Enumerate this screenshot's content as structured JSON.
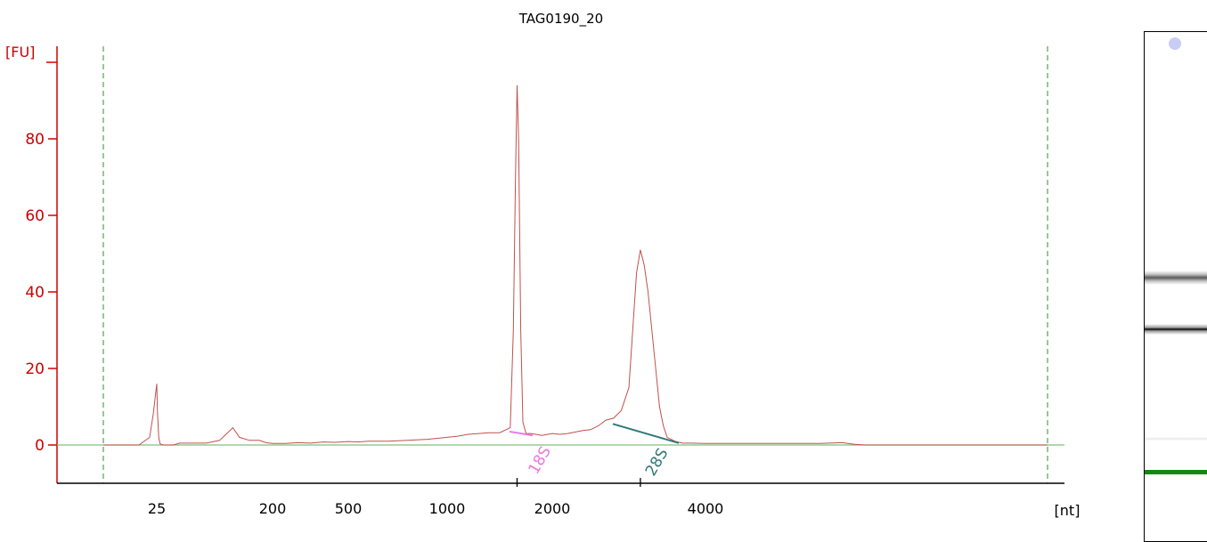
{
  "colors": {
    "trace": "#c0504d",
    "axis": "#d40000",
    "baseline": "#7fbf7f",
    "marker_18s": "#ee77dd",
    "marker_28s": "#307878",
    "gel_marker": "#118811"
  },
  "chart_data": {
    "type": "line",
    "title": "TAG0190_20",
    "ylabel": "[FU]",
    "xlabel": "[nt]",
    "ylim": [
      -10,
      105
    ],
    "yticks": [
      0,
      20,
      40,
      60,
      80
    ],
    "xticks": [
      "25",
      "200",
      "500",
      "1000",
      "2000",
      "4000"
    ],
    "x_scale": "nonlinear (size ladder)",
    "grid": false,
    "series": [
      {
        "points": [
          [
            10,
            0
          ],
          [
            20,
            0
          ],
          [
            23,
            2
          ],
          [
            24,
            8
          ],
          [
            25,
            16
          ],
          [
            26,
            9
          ],
          [
            28,
            2
          ],
          [
            30,
            0.3
          ],
          [
            35,
            0
          ],
          [
            50,
            0
          ],
          [
            60,
            0.5
          ],
          [
            100,
            0.5
          ],
          [
            120,
            1.2
          ],
          [
            140,
            4.5
          ],
          [
            150,
            2
          ],
          [
            165,
            1.2
          ],
          [
            180,
            1.2
          ],
          [
            190,
            0.6
          ],
          [
            200,
            0.4
          ],
          [
            250,
            0.4
          ],
          [
            300,
            0.6
          ],
          [
            350,
            0.5
          ],
          [
            400,
            0.8
          ],
          [
            450,
            0.7
          ],
          [
            500,
            0.9
          ],
          [
            550,
            0.8
          ],
          [
            600,
            1.0
          ],
          [
            700,
            1.0
          ],
          [
            800,
            1.2
          ],
          [
            900,
            1.5
          ],
          [
            1000,
            2.0
          ],
          [
            1100,
            2.3
          ],
          [
            1200,
            2.8
          ],
          [
            1300,
            3.0
          ],
          [
            1400,
            3.2
          ],
          [
            1500,
            3.2
          ],
          [
            1600,
            4.5
          ],
          [
            1630,
            30
          ],
          [
            1650,
            70
          ],
          [
            1665,
            94
          ],
          [
            1680,
            80
          ],
          [
            1700,
            30
          ],
          [
            1720,
            6
          ],
          [
            1750,
            3
          ],
          [
            1800,
            3
          ],
          [
            1900,
            2.5
          ],
          [
            2000,
            3
          ],
          [
            2100,
            2.8
          ],
          [
            2200,
            3
          ],
          [
            2400,
            3.8
          ],
          [
            2500,
            4
          ],
          [
            2600,
            5
          ],
          [
            2700,
            6.5
          ],
          [
            2800,
            7
          ],
          [
            2900,
            9
          ],
          [
            3000,
            15
          ],
          [
            3050,
            30
          ],
          [
            3100,
            45
          ],
          [
            3150,
            51
          ],
          [
            3200,
            47
          ],
          [
            3250,
            40
          ],
          [
            3300,
            30
          ],
          [
            3350,
            20
          ],
          [
            3400,
            10
          ],
          [
            3450,
            5
          ],
          [
            3500,
            2
          ],
          [
            3600,
            1
          ],
          [
            3700,
            0.5
          ],
          [
            3800,
            0.5
          ],
          [
            4000,
            0.4
          ],
          [
            4500,
            0.4
          ],
          [
            5000,
            0.4
          ],
          [
            5200,
            0.6
          ],
          [
            5300,
            0.2
          ],
          [
            5400,
            0
          ],
          [
            6000,
            0
          ],
          [
            7000,
            0
          ]
        ]
      }
    ],
    "annotations": [
      {
        "label": "18S",
        "x": 1665
      },
      {
        "label": "28S",
        "x": 3150
      }
    ]
  }
}
